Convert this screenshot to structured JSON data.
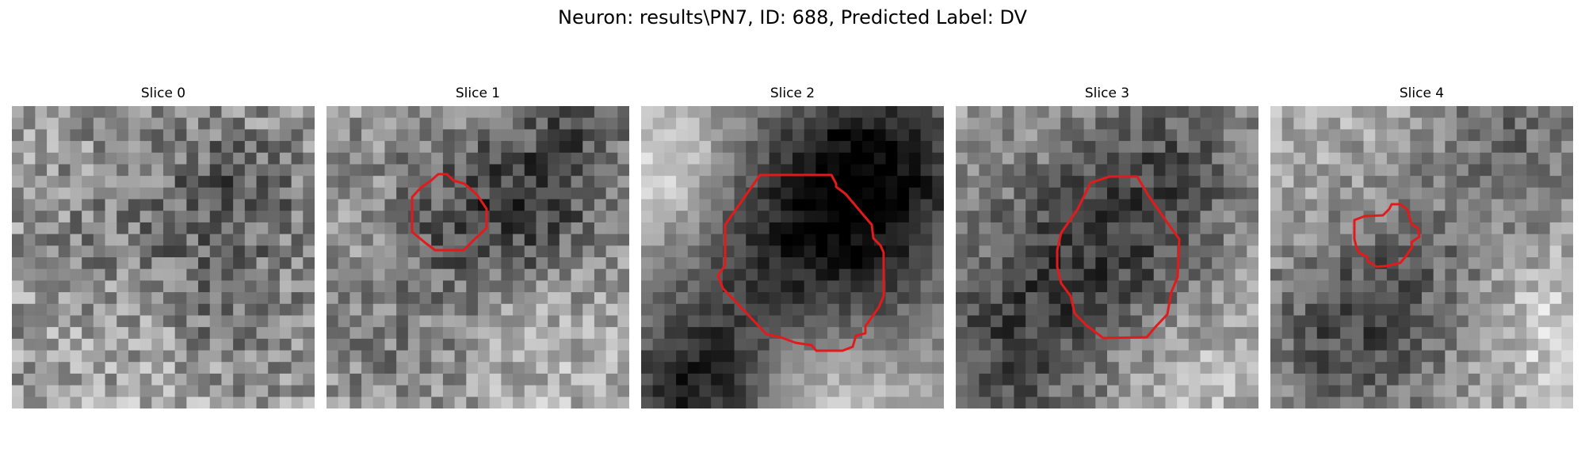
{
  "figure": {
    "title": "Neuron: results\\PN7, ID: 688, Predicted Label: DV"
  },
  "slices": [
    {
      "title": "Slice 0",
      "contour": false
    },
    {
      "title": "Slice 1",
      "contour": true
    },
    {
      "title": "Slice 2",
      "contour": true
    },
    {
      "title": "Slice 3",
      "contour": true
    },
    {
      "title": "Slice 4",
      "contour": true
    }
  ],
  "colors": {
    "contour": "#e31a1c",
    "colormap": "gray"
  }
}
